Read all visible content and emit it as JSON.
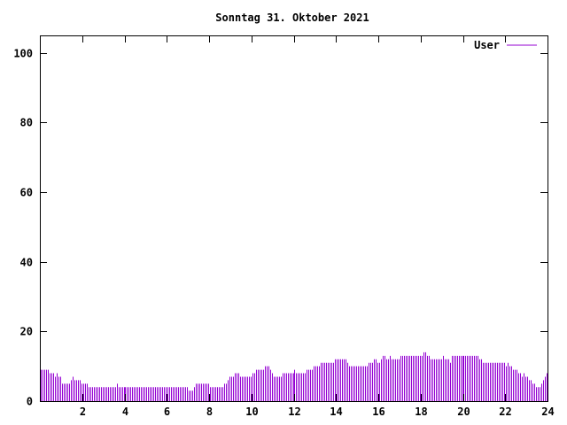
{
  "chart_data": {
    "type": "bar",
    "title": "Sonntag 31. Oktober 2021",
    "xlabel": "",
    "ylabel": "",
    "xlim": [
      0,
      24
    ],
    "ylim": [
      0,
      105
    ],
    "xticks": [
      2,
      4,
      6,
      8,
      10,
      12,
      14,
      16,
      18,
      20,
      22,
      24
    ],
    "yticks": [
      0,
      20,
      40,
      60,
      80,
      100
    ],
    "grid": false,
    "legend": "top-right",
    "bar_color": "#9400d3",
    "series": [
      {
        "name": "User",
        "hours": [
          [
            9,
            9,
            9,
            9,
            9,
            8,
            8,
            8,
            7,
            8,
            7,
            7
          ],
          [
            5,
            5,
            5,
            5,
            5,
            6,
            7,
            6,
            6,
            6,
            6,
            5
          ],
          [
            5,
            5,
            5,
            4,
            4,
            4,
            4,
            4,
            4,
            4,
            4,
            4
          ],
          [
            4,
            4,
            4,
            4,
            4,
            4,
            4,
            5,
            4,
            4,
            4,
            4
          ],
          [
            4,
            4,
            4,
            4,
            4,
            4,
            4,
            4,
            4,
            4,
            4,
            4
          ],
          [
            4,
            4,
            4,
            4,
            4,
            4,
            4,
            4,
            4,
            4,
            4,
            4
          ],
          [
            4,
            4,
            4,
            4,
            4,
            4,
            4,
            4,
            4,
            4,
            4,
            4
          ],
          [
            3,
            3,
            3,
            4,
            5,
            5,
            5,
            5,
            5,
            5,
            5,
            5
          ],
          [
            4,
            4,
            4,
            4,
            4,
            4,
            4,
            4,
            5,
            5,
            6,
            7
          ],
          [
            7,
            7,
            8,
            8,
            8,
            7,
            7,
            7,
            7,
            7,
            7,
            7
          ],
          [
            8,
            8,
            9,
            9,
            9,
            9,
            9,
            10,
            10,
            10,
            9,
            8
          ],
          [
            7,
            7,
            7,
            7,
            7,
            8,
            8,
            8,
            8,
            8,
            8,
            8
          ],
          [
            9,
            8,
            8,
            8,
            8,
            8,
            8,
            9,
            9,
            9,
            9,
            10
          ],
          [
            10,
            10,
            10,
            11,
            11,
            11,
            11,
            11,
            11,
            11,
            11,
            12
          ],
          [
            12,
            12,
            12,
            12,
            12,
            12,
            11,
            10,
            10,
            10,
            10,
            10
          ],
          [
            10,
            10,
            10,
            10,
            10,
            10,
            11,
            11,
            11,
            12,
            12,
            11
          ],
          [
            11,
            12,
            13,
            13,
            12,
            12,
            13,
            12,
            12,
            12,
            12,
            12
          ],
          [
            13,
            13,
            13,
            13,
            13,
            13,
            13,
            13,
            13,
            13,
            13,
            13
          ],
          [
            13,
            14,
            14,
            13,
            13,
            12,
            12,
            12,
            12,
            12,
            12,
            12
          ],
          [
            13,
            12,
            12,
            12,
            11,
            13,
            13,
            13,
            13,
            13,
            13,
            13
          ],
          [
            13,
            13,
            13,
            13,
            13,
            13,
            13,
            13,
            13,
            12,
            12,
            11
          ],
          [
            11,
            11,
            11,
            11,
            11,
            11,
            11,
            11,
            11,
            11,
            11,
            11
          ],
          [
            10,
            11,
            10,
            10,
            9,
            9,
            9,
            8,
            8,
            7,
            8,
            7
          ],
          [
            7,
            6,
            6,
            5,
            5,
            4,
            4,
            4,
            5,
            6,
            7,
            8
          ]
        ]
      }
    ]
  }
}
